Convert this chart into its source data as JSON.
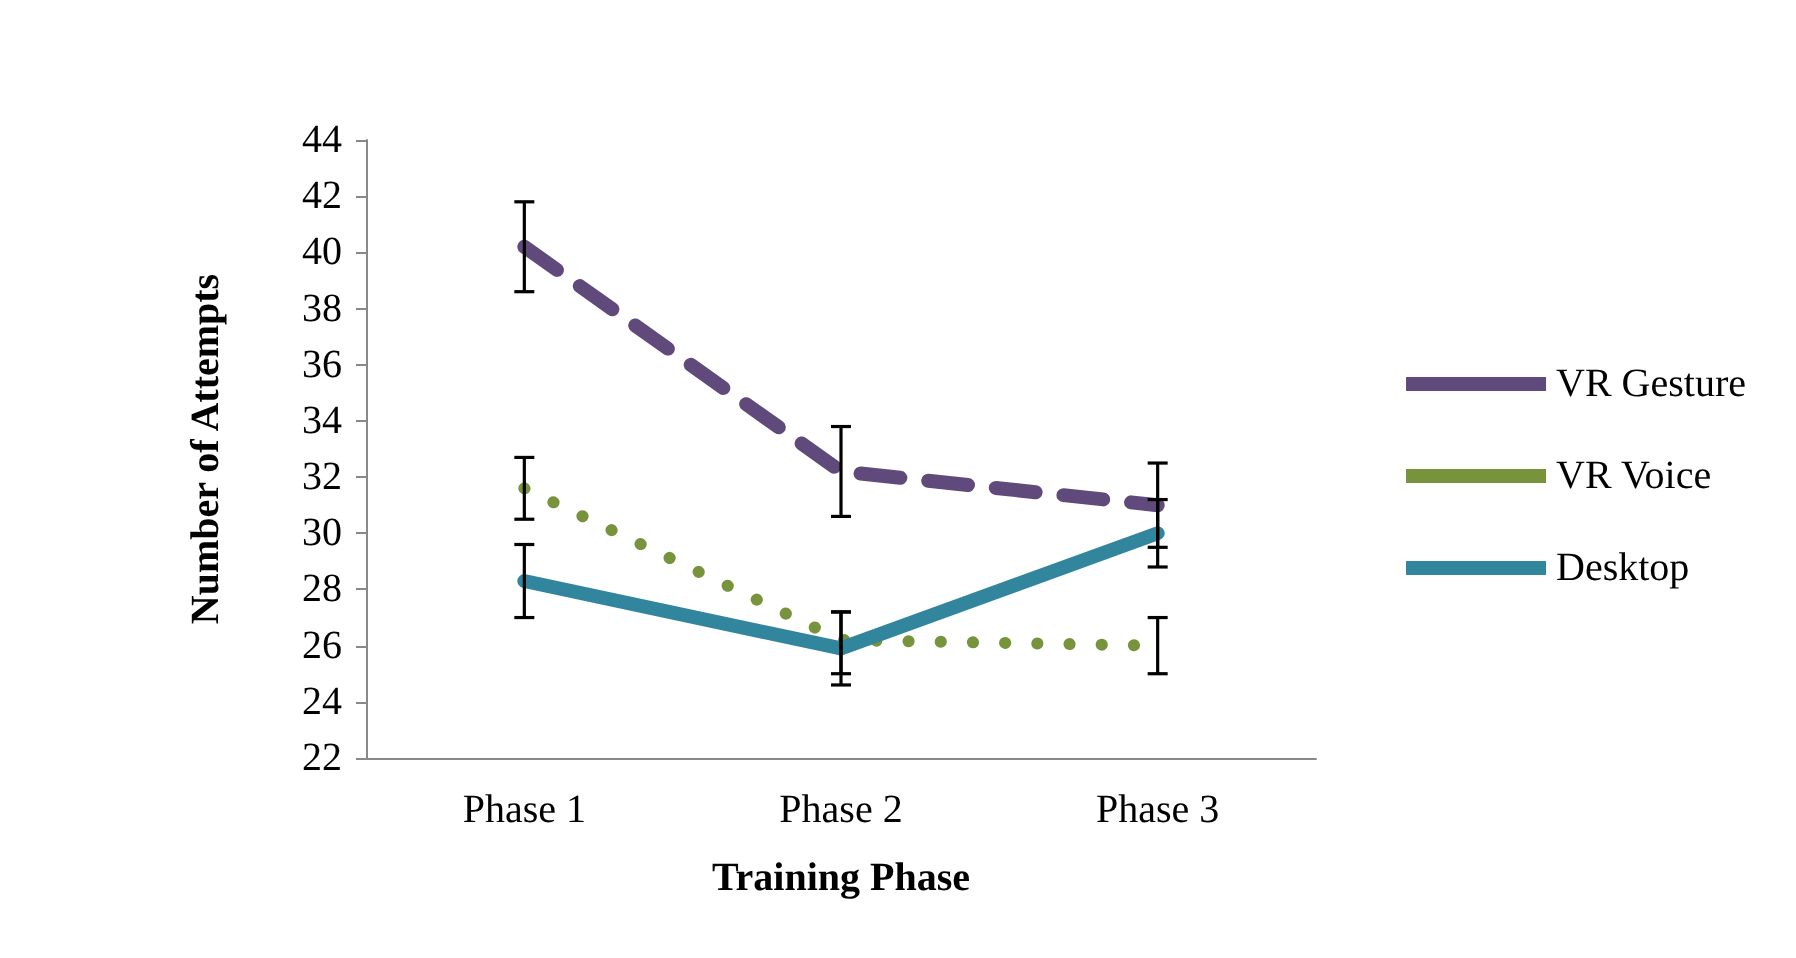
{
  "chart_data": {
    "type": "line",
    "xlabel": "Training Phase",
    "ylabel": "Number of Attempts",
    "categories": [
      "Phase 1",
      "Phase 2",
      "Phase 3"
    ],
    "series": [
      {
        "name": "VR Gesture",
        "color": "#604a7b",
        "line_style": "dashed",
        "values": [
          40.2,
          32.2,
          31.0
        ],
        "errors": [
          [
            38.6,
            41.8
          ],
          [
            30.6,
            33.8
          ],
          [
            29.5,
            32.5
          ]
        ]
      },
      {
        "name": "VR Voice",
        "color": "#77933c",
        "line_style": "dotted",
        "values": [
          31.6,
          26.2,
          26.0
        ],
        "errors": [
          [
            30.5,
            32.7
          ],
          [
            25.0,
            27.2
          ],
          [
            25.0,
            27.0
          ]
        ]
      },
      {
        "name": "Desktop",
        "color": "#31859c",
        "line_style": "solid",
        "values": [
          28.3,
          25.9,
          30.0
        ],
        "errors": [
          [
            27.0,
            29.6
          ],
          [
            24.6,
            27.2
          ],
          [
            28.8,
            31.2
          ]
        ]
      }
    ],
    "ylim": [
      22,
      44
    ],
    "yticks": [
      22,
      24,
      26,
      28,
      30,
      32,
      34,
      36,
      38,
      40,
      42,
      44
    ],
    "grid": false,
    "legend": "right",
    "marker": "none"
  }
}
